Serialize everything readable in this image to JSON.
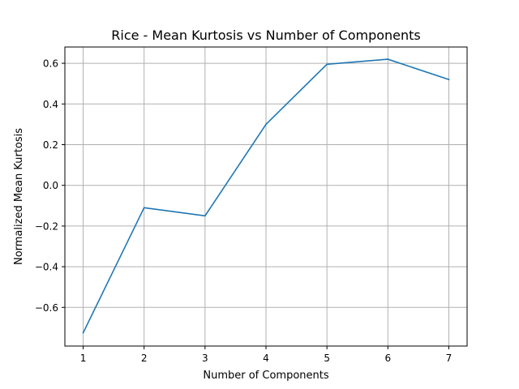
{
  "chart_data": {
    "type": "line",
    "title": "Rice - Mean Kurtosis vs Number of Components",
    "xlabel": "Number of Components",
    "ylabel": "Normalized Mean Kurtosis",
    "x": [
      1,
      2,
      3,
      4,
      5,
      6,
      7
    ],
    "series": [
      {
        "values": [
          -0.725,
          -0.11,
          -0.15,
          0.3,
          0.595,
          0.62,
          0.52
        ],
        "color": "#1f77b4"
      }
    ],
    "xlim": [
      0.7,
      7.3
    ],
    "ylim": [
      -0.79,
      0.68
    ],
    "xticks": [
      1,
      2,
      3,
      4,
      5,
      6,
      7
    ],
    "yticks": [
      -0.6,
      -0.4,
      -0.2,
      0.0,
      0.2,
      0.4,
      0.6
    ],
    "ytick_labels": [
      "−0.6",
      "−0.4",
      "−0.2",
      "0.0",
      "0.2",
      "0.4",
      "0.6"
    ],
    "grid": true,
    "legend": "none"
  }
}
